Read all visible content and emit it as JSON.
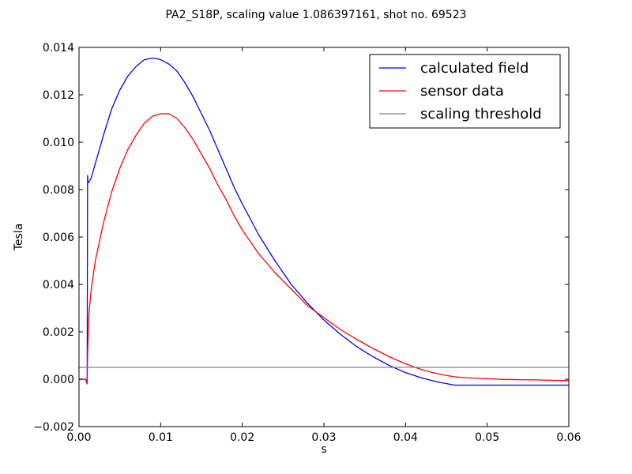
{
  "chart_data": {
    "type": "line",
    "title": "PA2_S18P, scaling value 1.086397161, shot no. 69523",
    "xlabel": "s",
    "ylabel": "Tesla",
    "xlim": [
      0.0,
      0.06
    ],
    "ylim": [
      -0.002,
      0.014
    ],
    "xticks": [
      {
        "value": 0.0,
        "label": "0.00"
      },
      {
        "value": 0.01,
        "label": "0.01"
      },
      {
        "value": 0.02,
        "label": "0.02"
      },
      {
        "value": 0.03,
        "label": "0.03"
      },
      {
        "value": 0.04,
        "label": "0.04"
      },
      {
        "value": 0.05,
        "label": "0.05"
      },
      {
        "value": 0.06,
        "label": "0.06"
      }
    ],
    "yticks": [
      {
        "value": -0.002,
        "label": "−0.002"
      },
      {
        "value": 0.0,
        "label": "0.000"
      },
      {
        "value": 0.002,
        "label": "0.002"
      },
      {
        "value": 0.004,
        "label": "0.004"
      },
      {
        "value": 0.006,
        "label": "0.006"
      },
      {
        "value": 0.008,
        "label": "0.008"
      },
      {
        "value": 0.01,
        "label": "0.010"
      },
      {
        "value": 0.012,
        "label": "0.012"
      },
      {
        "value": 0.014,
        "label": "0.014"
      }
    ],
    "grid": false,
    "legend": "top-right",
    "series": [
      {
        "name": "calculated field",
        "color": "#0000ff",
        "x": [
          0.0,
          0.0008,
          0.001,
          0.00105,
          0.0011,
          0.0012,
          0.0015,
          0.002,
          0.003,
          0.004,
          0.005,
          0.006,
          0.007,
          0.008,
          0.009,
          0.0095,
          0.01,
          0.011,
          0.012,
          0.013,
          0.014,
          0.015,
          0.016,
          0.017,
          0.018,
          0.019,
          0.02,
          0.022,
          0.024,
          0.026,
          0.028,
          0.03,
          0.032,
          0.034,
          0.036,
          0.038,
          0.04,
          0.042,
          0.044,
          0.046,
          0.048,
          0.05,
          0.052,
          0.054,
          0.056,
          0.058,
          0.06
        ],
        "y": [
          0.0,
          0.0,
          -0.0001,
          0.0086,
          0.0083,
          0.0083,
          0.0085,
          0.0091,
          0.0103,
          0.0114,
          0.0122,
          0.0128,
          0.0132,
          0.01348,
          0.01355,
          0.01353,
          0.01348,
          0.0133,
          0.013,
          0.0125,
          0.0119,
          0.0112,
          0.0105,
          0.0097,
          0.0089,
          0.0081,
          0.0074,
          0.0061,
          0.005,
          0.004,
          0.0032,
          0.0025,
          0.0019,
          0.00138,
          0.00095,
          0.00058,
          0.00028,
          5e-05,
          -0.00012,
          -0.00025,
          -0.00025,
          -0.00025,
          -0.00025,
          -0.00025,
          -0.00025,
          -0.00025,
          -0.00025
        ]
      },
      {
        "name": "sensor data",
        "color": "#ff0000",
        "x": [
          0.0,
          0.0008,
          0.001,
          0.00105,
          0.0012,
          0.0015,
          0.002,
          0.003,
          0.004,
          0.005,
          0.006,
          0.007,
          0.008,
          0.009,
          0.01,
          0.011,
          0.012,
          0.013,
          0.014,
          0.015,
          0.016,
          0.017,
          0.018,
          0.019,
          0.02,
          0.022,
          0.024,
          0.026,
          0.028,
          0.03,
          0.032,
          0.034,
          0.036,
          0.038,
          0.04,
          0.042,
          0.044,
          0.046,
          0.048,
          0.05,
          0.052,
          0.054,
          0.056,
          0.058,
          0.06
        ],
        "y": [
          0.0,
          0.0,
          -0.0002,
          0.001,
          0.0027,
          0.0038,
          0.005,
          0.0066,
          0.0079,
          0.0089,
          0.0097,
          0.0103,
          0.0108,
          0.0111,
          0.0112,
          0.0112,
          0.011,
          0.0106,
          0.0101,
          0.0095,
          0.0089,
          0.0082,
          0.0076,
          0.0069,
          0.0063,
          0.0053,
          0.0045,
          0.0038,
          0.0031,
          0.0026,
          0.0021,
          0.00168,
          0.0013,
          0.00095,
          0.00065,
          0.0004,
          0.00022,
          0.0001,
          5e-05,
          2e-05,
          -1e-05,
          -2e-05,
          -3e-05,
          -5e-05,
          -6e-05
        ]
      },
      {
        "name": "scaling threshold",
        "color": "#808080",
        "x": [
          0.0,
          0.06
        ],
        "y": [
          0.0005,
          0.0005
        ]
      }
    ]
  }
}
